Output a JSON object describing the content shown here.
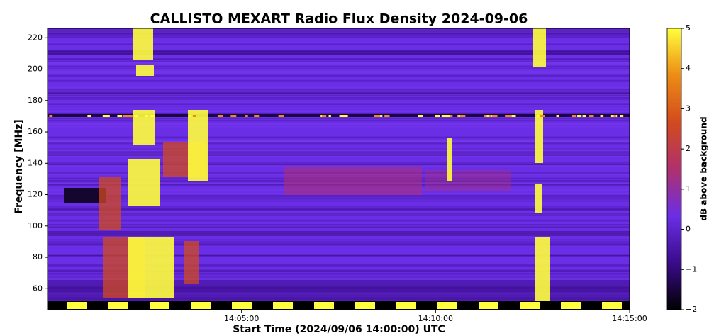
{
  "chart_data": {
    "type": "heatmap",
    "title": "CALLISTO   MEXART   Radio Flux Density   2024-09-06",
    "x_label": "Start Time   (2024/09/06   14:00:00)   UTC",
    "y_label": "Frequency [MHz]",
    "xlim": [
      0,
      15
    ],
    "xticks": [
      {
        "value": 5,
        "label": "14:05:00"
      },
      {
        "value": 10,
        "label": "14:10:00"
      },
      {
        "value": 15,
        "label": "14:15:00"
      }
    ],
    "ylim": [
      52,
      226
    ],
    "yticks": [
      60,
      80,
      100,
      120,
      140,
      160,
      180,
      200,
      220
    ],
    "colorbar_label": "dB above background",
    "clim": [
      -2,
      5
    ],
    "cticks": [
      {
        "value": -2,
        "label": "−2"
      },
      {
        "value": -1,
        "label": "−1"
      },
      0,
      1,
      2,
      3,
      4,
      5
    ],
    "colormap": [
      "#000000",
      "#3a0b8a",
      "#6a2ee6",
      "#b0306c",
      "#d24a1e",
      "#ec8c14",
      "#ffff3c"
    ]
  }
}
